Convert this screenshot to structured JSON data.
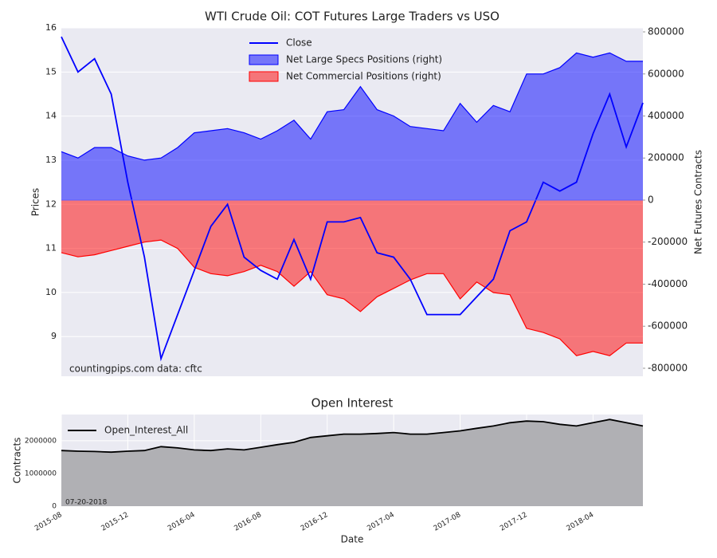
{
  "chart_data": [
    {
      "type": "line",
      "title": "WTI Crude Oil: COT Futures Large Traders vs USO",
      "ylabel": "Prices",
      "y2label": "Net Futures Contracts",
      "x": [
        "2015-08",
        "2015-09",
        "2015-10",
        "2015-11",
        "2015-12",
        "2016-01",
        "2016-02",
        "2016-03",
        "2016-04",
        "2016-05",
        "2016-06",
        "2016-07",
        "2016-08",
        "2016-09",
        "2016-10",
        "2016-11",
        "2016-12",
        "2017-01",
        "2017-02",
        "2017-03",
        "2017-04",
        "2017-05",
        "2017-06",
        "2017-07",
        "2017-08",
        "2017-09",
        "2017-10",
        "2017-11",
        "2017-12",
        "2018-01",
        "2018-02",
        "2018-03",
        "2018-04",
        "2018-05",
        "2018-06",
        "2018-07"
      ],
      "series": [
        {
          "name": "Close",
          "type": "line",
          "color": "#0000ff",
          "values": [
            15.8,
            15.0,
            15.3,
            14.5,
            12.5,
            10.8,
            8.5,
            9.5,
            10.5,
            11.5,
            12.0,
            10.8,
            10.5,
            10.3,
            11.2,
            10.3,
            11.6,
            11.6,
            11.7,
            10.9,
            10.8,
            10.3,
            9.5,
            9.5,
            9.5,
            9.9,
            10.3,
            11.4,
            11.6,
            12.5,
            12.3,
            12.5,
            13.6,
            14.5,
            13.3,
            14.3
          ]
        },
        {
          "name": "Net Large Specs Positions (right)",
          "type": "area",
          "axis": "y2",
          "color": "#0000ff",
          "values": [
            230000,
            200000,
            250000,
            250000,
            210000,
            190000,
            200000,
            250000,
            320000,
            330000,
            340000,
            320000,
            290000,
            330000,
            380000,
            290000,
            420000,
            430000,
            540000,
            430000,
            400000,
            350000,
            340000,
            330000,
            460000,
            370000,
            450000,
            420000,
            600000,
            600000,
            630000,
            700000,
            680000,
            700000,
            660000,
            660000
          ]
        },
        {
          "name": "Net Commercial Positions (right)",
          "type": "area",
          "axis": "y2",
          "color": "#ff0000",
          "values": [
            -250000,
            -270000,
            -260000,
            -240000,
            -220000,
            -200000,
            -190000,
            -230000,
            -320000,
            -350000,
            -360000,
            -340000,
            -310000,
            -340000,
            -410000,
            -340000,
            -450000,
            -470000,
            -530000,
            -460000,
            -420000,
            -380000,
            -350000,
            -350000,
            -470000,
            -390000,
            -440000,
            -450000,
            -610000,
            -630000,
            -660000,
            -740000,
            -720000,
            -740000,
            -680000,
            -680000
          ]
        }
      ],
      "ylim": [
        8.1,
        16.0
      ],
      "yticks": [
        9,
        10,
        11,
        12,
        13,
        14,
        15,
        16
      ],
      "y2lim": [
        -838000,
        819000
      ],
      "y2ticks": [
        800000,
        600000,
        400000,
        200000,
        0,
        -200000,
        -400000,
        -600000,
        -800000
      ],
      "grid": true,
      "legend": "upper center",
      "annotations": [
        "countingpips.com",
        "data: cftc"
      ]
    },
    {
      "type": "area",
      "title": "Open Interest",
      "ylabel": "Contracts",
      "xlabel": "Date",
      "x": [
        "2015-08",
        "2015-09",
        "2015-10",
        "2015-11",
        "2015-12",
        "2016-01",
        "2016-02",
        "2016-03",
        "2016-04",
        "2016-05",
        "2016-06",
        "2016-07",
        "2016-08",
        "2016-09",
        "2016-10",
        "2016-11",
        "2016-12",
        "2017-01",
        "2017-02",
        "2017-03",
        "2017-04",
        "2017-05",
        "2017-06",
        "2017-07",
        "2017-08",
        "2017-09",
        "2017-10",
        "2017-11",
        "2017-12",
        "2018-01",
        "2018-02",
        "2018-03",
        "2018-04",
        "2018-05",
        "2018-06",
        "2018-07"
      ],
      "xticks": [
        "2015-08",
        "2015-12",
        "2016-04",
        "2016-08",
        "2016-12",
        "2017-04",
        "2017-08",
        "2017-12",
        "2018-04"
      ],
      "series": [
        {
          "name": "Open_Interest_All",
          "type": "area",
          "color": "#000000",
          "fill": "#b0b0b4",
          "values": [
            1700000,
            1680000,
            1670000,
            1650000,
            1680000,
            1700000,
            1820000,
            1780000,
            1720000,
            1700000,
            1750000,
            1720000,
            1800000,
            1880000,
            1950000,
            2100000,
            2150000,
            2200000,
            2200000,
            2220000,
            2250000,
            2200000,
            2200000,
            2250000,
            2300000,
            2380000,
            2450000,
            2550000,
            2600000,
            2580000,
            2500000,
            2450000,
            2550000,
            2650000,
            2550000,
            2450000
          ]
        }
      ],
      "ylim": [
        0,
        2800000
      ],
      "yticks": [
        0,
        1000000,
        2000000
      ],
      "grid": true,
      "legend": "upper left",
      "annotations": [
        "07-20-2018"
      ]
    }
  ]
}
